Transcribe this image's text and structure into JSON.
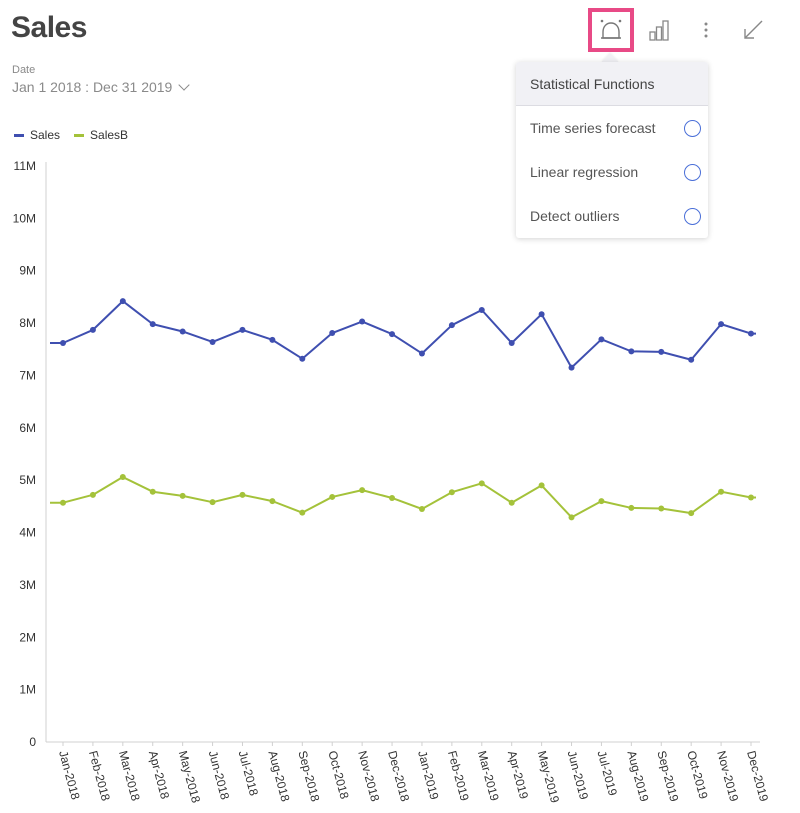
{
  "header": {
    "title": "Sales",
    "date_label": "Date",
    "date_range": "Jan 1 2018 : Dec 31 2019"
  },
  "toolbar": {
    "stats_icon": "statistics-icon",
    "chart_icon": "bar-chart-icon",
    "more_icon": "more-vertical-icon",
    "collapse_icon": "collapse-arrow-icon",
    "highlight_color": "#e84a86"
  },
  "menu": {
    "title": "Statistical Functions",
    "items": [
      {
        "label": "Time series forecast"
      },
      {
        "label": "Linear regression"
      },
      {
        "label": "Detect outliers"
      }
    ]
  },
  "chart_data": {
    "type": "line",
    "categories": [
      "Jan-2018",
      "Feb-2018",
      "Mar-2018",
      "Apr-2018",
      "May-2018",
      "Jun-2018",
      "Jul-2018",
      "Aug-2018",
      "Sep-2018",
      "Oct-2018",
      "Nov-2018",
      "Dec-2018",
      "Jan-2019",
      "Feb-2019",
      "Mar-2019",
      "Apr-2019",
      "May-2019",
      "Jun-2019",
      "Jul-2019",
      "Aug-2019",
      "Sep-2019",
      "Oct-2019",
      "Nov-2019",
      "Dec-2019"
    ],
    "series": [
      {
        "name": "Sales",
        "color": "#3f4fb0",
        "values": [
          7620000,
          7870000,
          8420000,
          7980000,
          7840000,
          7640000,
          7870000,
          7680000,
          7320000,
          7810000,
          8030000,
          7790000,
          7420000,
          7960000,
          8250000,
          7620000,
          8170000,
          7150000,
          7690000,
          7460000,
          7450000,
          7300000,
          7980000,
          7800000
        ]
      },
      {
        "name": "SalesB",
        "color": "#a4c23a",
        "values": [
          4570000,
          4720000,
          5060000,
          4780000,
          4700000,
          4580000,
          4720000,
          4600000,
          4380000,
          4680000,
          4810000,
          4660000,
          4450000,
          4770000,
          4940000,
          4570000,
          4900000,
          4290000,
          4600000,
          4470000,
          4460000,
          4370000,
          4780000,
          4670000
        ]
      }
    ],
    "y_ticks": [
      "0",
      "1M",
      "2M",
      "3M",
      "4M",
      "5M",
      "6M",
      "7M",
      "8M",
      "9M",
      "10M",
      "11M"
    ],
    "ylim": [
      0,
      11000000
    ],
    "legend_position": "top-left",
    "grid": false
  }
}
